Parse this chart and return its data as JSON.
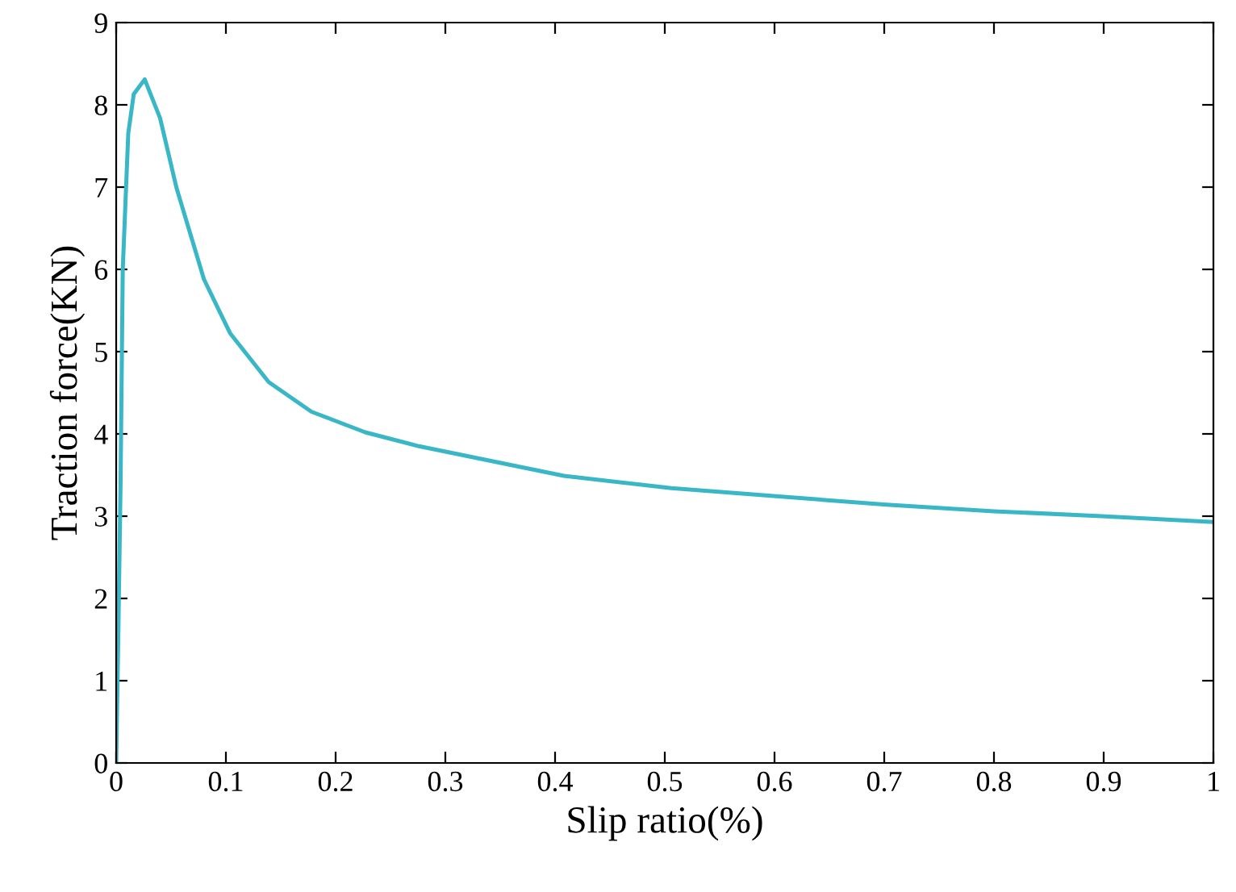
{
  "chart_data": {
    "type": "line",
    "xlabel": "Slip ratio(%)",
    "ylabel": "Traction force(KN)",
    "xlim": [
      0,
      1
    ],
    "ylim": [
      0,
      9
    ],
    "xticks": [
      0,
      0.1,
      0.2,
      0.3,
      0.4,
      0.5,
      0.6,
      0.7,
      0.8,
      0.9,
      1
    ],
    "yticks": [
      0,
      1,
      2,
      3,
      4,
      5,
      6,
      7,
      8,
      9
    ],
    "grid": false,
    "line_style": "solid",
    "marker": "none",
    "series": [
      {
        "color": "#3ab7c6",
        "x": [
          0,
          0.002,
          0.004,
          0.006,
          0.011,
          0.016,
          0.026,
          0.04,
          0.055,
          0.08,
          0.104,
          0.139,
          0.178,
          0.227,
          0.276,
          0.408,
          0.506,
          0.604,
          0.702,
          0.8,
          0.898,
          1.0
        ],
        "values": [
          0,
          1.6,
          3.4,
          6.0,
          7.65,
          8.13,
          8.31,
          7.84,
          6.99,
          5.88,
          5.22,
          4.63,
          4.27,
          4.02,
          3.85,
          3.49,
          3.34,
          3.24,
          3.14,
          3.06,
          3.0,
          2.93
        ]
      }
    ]
  }
}
